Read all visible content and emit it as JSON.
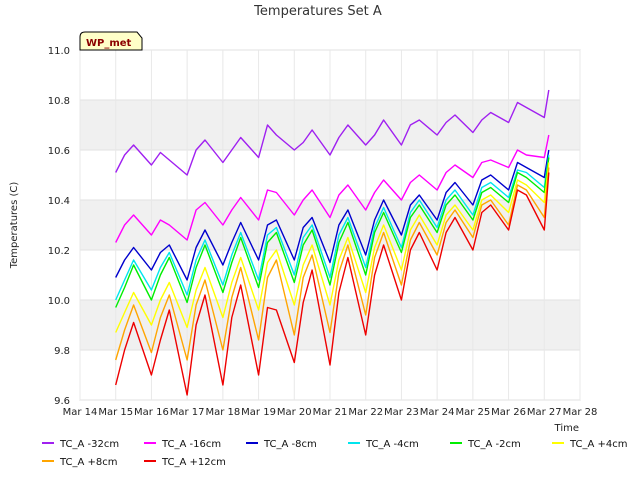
{
  "chart_data": {
    "type": "line",
    "title": "Temperatures Set A",
    "xlabel": "Time",
    "ylabel": "Temperatures (C)",
    "badge": "WP_met",
    "ylim": [
      9.6,
      11.0
    ],
    "xlim": [
      "Mar 14",
      "Mar 28"
    ],
    "grid": true,
    "legend_position": "bottom",
    "x_ticks": [
      "Mar 14",
      "Mar 15",
      "Mar 16",
      "Mar 17",
      "Mar 18",
      "Mar 19",
      "Mar 20",
      "Mar 21",
      "Mar 22",
      "Mar 23",
      "Mar 24",
      "Mar 25",
      "Mar 26",
      "Mar 27",
      "Mar 28"
    ],
    "y_ticks": [
      "9.6",
      "9.8",
      "10.0",
      "10.2",
      "10.4",
      "10.6",
      "10.8",
      "11.0"
    ],
    "series": [
      {
        "name": "TC_A -32cm",
        "color": "#a020f0",
        "x": [
          "Mar 15 00:00",
          "Mar 15 06:00",
          "Mar 15 12:00",
          "Mar 16 00:00",
          "Mar 16 06:00",
          "Mar 16 12:00",
          "Mar 17 00:00",
          "Mar 17 06:00",
          "Mar 17 12:00",
          "Mar 18 00:00",
          "Mar 18 06:00",
          "Mar 18 12:00",
          "Mar 19 00:00",
          "Mar 19 06:00",
          "Mar 19 12:00",
          "Mar 20 00:00",
          "Mar 20 06:00",
          "Mar 20 12:00",
          "Mar 21 00:00",
          "Mar 21 06:00",
          "Mar 21 12:00",
          "Mar 22 00:00",
          "Mar 22 06:00",
          "Mar 22 12:00",
          "Mar 23 00:00",
          "Mar 23 06:00",
          "Mar 23 12:00",
          "Mar 24 00:00",
          "Mar 24 06:00",
          "Mar 24 12:00",
          "Mar 25 00:00",
          "Mar 25 06:00",
          "Mar 25 12:00",
          "Mar 26 00:00",
          "Mar 26 06:00",
          "Mar 26 12:00",
          "Mar 27 00:00",
          "Mar 27 03:00"
        ],
        "y": [
          10.51,
          10.58,
          10.62,
          10.54,
          10.59,
          10.56,
          10.5,
          10.6,
          10.64,
          10.55,
          10.6,
          10.65,
          10.57,
          10.7,
          10.66,
          10.6,
          10.63,
          10.68,
          10.58,
          10.65,
          10.7,
          10.62,
          10.66,
          10.72,
          10.62,
          10.7,
          10.72,
          10.66,
          10.71,
          10.74,
          10.67,
          10.72,
          10.75,
          10.71,
          10.79,
          10.77,
          10.73,
          10.84
        ]
      },
      {
        "name": "TC_A -16cm",
        "color": "#ff00ff",
        "x": [
          "Mar 15 00:00",
          "Mar 15 06:00",
          "Mar 15 12:00",
          "Mar 16 00:00",
          "Mar 16 06:00",
          "Mar 16 12:00",
          "Mar 17 00:00",
          "Mar 17 06:00",
          "Mar 17 12:00",
          "Mar 18 00:00",
          "Mar 18 06:00",
          "Mar 18 12:00",
          "Mar 19 00:00",
          "Mar 19 06:00",
          "Mar 19 12:00",
          "Mar 20 00:00",
          "Mar 20 06:00",
          "Mar 20 12:00",
          "Mar 21 00:00",
          "Mar 21 06:00",
          "Mar 21 12:00",
          "Mar 22 00:00",
          "Mar 22 06:00",
          "Mar 22 12:00",
          "Mar 23 00:00",
          "Mar 23 06:00",
          "Mar 23 12:00",
          "Mar 24 00:00",
          "Mar 24 06:00",
          "Mar 24 12:00",
          "Mar 25 00:00",
          "Mar 25 06:00",
          "Mar 25 12:00",
          "Mar 26 00:00",
          "Mar 26 06:00",
          "Mar 26 12:00",
          "Mar 27 00:00",
          "Mar 27 03:00"
        ],
        "y": [
          10.23,
          10.3,
          10.34,
          10.26,
          10.32,
          10.3,
          10.24,
          10.36,
          10.39,
          10.3,
          10.36,
          10.41,
          10.32,
          10.44,
          10.43,
          10.34,
          10.4,
          10.44,
          10.33,
          10.42,
          10.46,
          10.36,
          10.43,
          10.48,
          10.4,
          10.47,
          10.5,
          10.44,
          10.51,
          10.54,
          10.49,
          10.55,
          10.56,
          10.53,
          10.6,
          10.58,
          10.57,
          10.66
        ]
      },
      {
        "name": "TC_A -8cm",
        "color": "#0000cd",
        "x": [
          "Mar 15 00:00",
          "Mar 15 06:00",
          "Mar 15 12:00",
          "Mar 16 00:00",
          "Mar 16 06:00",
          "Mar 16 12:00",
          "Mar 17 00:00",
          "Mar 17 06:00",
          "Mar 17 12:00",
          "Mar 18 00:00",
          "Mar 18 06:00",
          "Mar 18 12:00",
          "Mar 19 00:00",
          "Mar 19 06:00",
          "Mar 19 12:00",
          "Mar 20 00:00",
          "Mar 20 06:00",
          "Mar 20 12:00",
          "Mar 21 00:00",
          "Mar 21 06:00",
          "Mar 21 12:00",
          "Mar 22 00:00",
          "Mar 22 06:00",
          "Mar 22 12:00",
          "Mar 23 00:00",
          "Mar 23 06:00",
          "Mar 23 12:00",
          "Mar 24 00:00",
          "Mar 24 06:00",
          "Mar 24 12:00",
          "Mar 25 00:00",
          "Mar 25 06:00",
          "Mar 25 12:00",
          "Mar 26 00:00",
          "Mar 26 06:00",
          "Mar 26 12:00",
          "Mar 27 00:00",
          "Mar 27 03:00"
        ],
        "y": [
          10.09,
          10.16,
          10.21,
          10.12,
          10.19,
          10.22,
          10.08,
          10.21,
          10.28,
          10.14,
          10.23,
          10.31,
          10.16,
          10.3,
          10.32,
          10.16,
          10.29,
          10.33,
          10.15,
          10.3,
          10.36,
          10.18,
          10.32,
          10.4,
          10.26,
          10.38,
          10.42,
          10.32,
          10.43,
          10.47,
          10.38,
          10.48,
          10.5,
          10.44,
          10.55,
          10.53,
          10.49,
          10.6
        ]
      },
      {
        "name": "TC_A -4cm",
        "color": "#00e5ee",
        "x": [
          "Mar 15 00:00",
          "Mar 15 06:00",
          "Mar 15 12:00",
          "Mar 16 00:00",
          "Mar 16 06:00",
          "Mar 16 12:00",
          "Mar 17 00:00",
          "Mar 17 06:00",
          "Mar 17 12:00",
          "Mar 18 00:00",
          "Mar 18 06:00",
          "Mar 18 12:00",
          "Mar 19 00:00",
          "Mar 19 06:00",
          "Mar 19 12:00",
          "Mar 20 00:00",
          "Mar 20 06:00",
          "Mar 20 12:00",
          "Mar 21 00:00",
          "Mar 21 06:00",
          "Mar 21 12:00",
          "Mar 22 00:00",
          "Mar 22 06:00",
          "Mar 22 12:00",
          "Mar 23 00:00",
          "Mar 23 06:00",
          "Mar 23 12:00",
          "Mar 24 00:00",
          "Mar 24 06:00",
          "Mar 24 12:00",
          "Mar 25 00:00",
          "Mar 25 06:00",
          "Mar 25 12:00",
          "Mar 26 00:00",
          "Mar 26 06:00",
          "Mar 26 12:00",
          "Mar 27 00:00",
          "Mar 27 03:00"
        ],
        "y": [
          10.0,
          10.08,
          10.16,
          10.04,
          10.13,
          10.19,
          10.02,
          10.16,
          10.24,
          10.06,
          10.18,
          10.27,
          10.08,
          10.26,
          10.29,
          10.1,
          10.25,
          10.3,
          10.09,
          10.26,
          10.33,
          10.13,
          10.29,
          10.37,
          10.21,
          10.35,
          10.4,
          10.29,
          10.4,
          10.44,
          10.34,
          10.45,
          10.47,
          10.41,
          10.52,
          10.51,
          10.45,
          10.58
        ]
      },
      {
        "name": "TC_A -2cm",
        "color": "#00ee00",
        "x": [
          "Mar 15 00:00",
          "Mar 15 06:00",
          "Mar 15 12:00",
          "Mar 16 00:00",
          "Mar 16 06:00",
          "Mar 16 12:00",
          "Mar 17 00:00",
          "Mar 17 06:00",
          "Mar 17 12:00",
          "Mar 18 00:00",
          "Mar 18 06:00",
          "Mar 18 12:00",
          "Mar 19 00:00",
          "Mar 19 06:00",
          "Mar 19 12:00",
          "Mar 20 00:00",
          "Mar 20 06:00",
          "Mar 20 12:00",
          "Mar 21 00:00",
          "Mar 21 06:00",
          "Mar 21 12:00",
          "Mar 22 00:00",
          "Mar 22 06:00",
          "Mar 22 12:00",
          "Mar 23 00:00",
          "Mar 23 06:00",
          "Mar 23 12:00",
          "Mar 24 00:00",
          "Mar 24 06:00",
          "Mar 24 12:00",
          "Mar 25 00:00",
          "Mar 25 06:00",
          "Mar 25 12:00",
          "Mar 26 00:00",
          "Mar 26 06:00",
          "Mar 26 12:00",
          "Mar 27 00:00",
          "Mar 27 03:00"
        ],
        "y": [
          9.97,
          10.05,
          10.14,
          10.0,
          10.1,
          10.17,
          9.99,
          10.13,
          10.22,
          10.03,
          10.15,
          10.25,
          10.05,
          10.23,
          10.27,
          10.07,
          10.22,
          10.28,
          10.06,
          10.23,
          10.31,
          10.1,
          10.27,
          10.35,
          10.19,
          10.33,
          10.38,
          10.27,
          10.38,
          10.42,
          10.32,
          10.43,
          10.45,
          10.39,
          10.51,
          10.49,
          10.43,
          10.57
        ]
      },
      {
        "name": "TC_A +4cm",
        "color": "#ffff00",
        "x": [
          "Mar 15 00:00",
          "Mar 15 06:00",
          "Mar 15 12:00",
          "Mar 16 00:00",
          "Mar 16 06:00",
          "Mar 16 12:00",
          "Mar 17 00:00",
          "Mar 17 06:00",
          "Mar 17 12:00",
          "Mar 18 00:00",
          "Mar 18 06:00",
          "Mar 18 12:00",
          "Mar 19 00:00",
          "Mar 19 06:00",
          "Mar 19 12:00",
          "Mar 20 00:00",
          "Mar 20 06:00",
          "Mar 20 12:00",
          "Mar 21 00:00",
          "Mar 21 06:00",
          "Mar 21 12:00",
          "Mar 22 00:00",
          "Mar 22 06:00",
          "Mar 22 12:00",
          "Mar 23 00:00",
          "Mar 23 06:00",
          "Mar 23 12:00",
          "Mar 24 00:00",
          "Mar 24 06:00",
          "Mar 24 12:00",
          "Mar 25 00:00",
          "Mar 25 06:00",
          "Mar 25 12:00",
          "Mar 26 00:00",
          "Mar 26 06:00",
          "Mar 26 12:00",
          "Mar 27 00:00",
          "Mar 27 03:00"
        ],
        "y": [
          9.87,
          9.95,
          10.03,
          9.9,
          10.0,
          10.07,
          9.89,
          10.04,
          10.13,
          9.93,
          10.07,
          10.17,
          9.96,
          10.15,
          10.2,
          9.98,
          10.14,
          10.22,
          9.98,
          10.16,
          10.25,
          10.03,
          10.21,
          10.3,
          10.12,
          10.28,
          10.34,
          10.22,
          10.34,
          10.38,
          10.28,
          10.4,
          10.42,
          10.35,
          10.48,
          10.46,
          10.39,
          10.55
        ]
      },
      {
        "name": "TC_A +8cm",
        "color": "#ffa500",
        "x": [
          "Mar 15 00:00",
          "Mar 15 06:00",
          "Mar 15 12:00",
          "Mar 16 00:00",
          "Mar 16 06:00",
          "Mar 16 12:00",
          "Mar 17 00:00",
          "Mar 17 06:00",
          "Mar 17 12:00",
          "Mar 18 00:00",
          "Mar 18 06:00",
          "Mar 18 12:00",
          "Mar 19 00:00",
          "Mar 19 06:00",
          "Mar 19 12:00",
          "Mar 20 00:00",
          "Mar 20 06:00",
          "Mar 20 12:00",
          "Mar 21 00:00",
          "Mar 21 06:00",
          "Mar 21 12:00",
          "Mar 22 00:00",
          "Mar 22 06:00",
          "Mar 22 12:00",
          "Mar 23 00:00",
          "Mar 23 06:00",
          "Mar 23 12:00",
          "Mar 24 00:00",
          "Mar 24 06:00",
          "Mar 24 12:00",
          "Mar 25 00:00",
          "Mar 25 06:00",
          "Mar 25 12:00",
          "Mar 26 00:00",
          "Mar 26 06:00",
          "Mar 26 12:00",
          "Mar 27 00:00",
          "Mar 27 03:00"
        ],
        "y": [
          9.76,
          9.88,
          9.98,
          9.79,
          9.93,
          10.02,
          9.76,
          9.98,
          10.08,
          9.8,
          10.01,
          10.13,
          9.84,
          10.09,
          10.16,
          9.86,
          10.09,
          10.18,
          9.87,
          10.11,
          10.22,
          9.94,
          10.17,
          10.27,
          10.06,
          10.24,
          10.31,
          10.18,
          10.31,
          10.36,
          10.25,
          10.38,
          10.4,
          10.3,
          10.46,
          10.44,
          10.33,
          10.53
        ]
      },
      {
        "name": "TC_A +12cm",
        "color": "#ee0000",
        "x": [
          "Mar 15 00:00",
          "Mar 15 06:00",
          "Mar 15 12:00",
          "Mar 16 00:00",
          "Mar 16 06:00",
          "Mar 16 12:00",
          "Mar 17 00:00",
          "Mar 17 06:00",
          "Mar 17 12:00",
          "Mar 18 00:00",
          "Mar 18 06:00",
          "Mar 18 12:00",
          "Mar 19 00:00",
          "Mar 19 06:00",
          "Mar 19 12:00",
          "Mar 20 00:00",
          "Mar 20 06:00",
          "Mar 20 12:00",
          "Mar 21 00:00",
          "Mar 21 06:00",
          "Mar 21 12:00",
          "Mar 22 00:00",
          "Mar 22 06:00",
          "Mar 22 12:00",
          "Mar 23 00:00",
          "Mar 23 06:00",
          "Mar 23 12:00",
          "Mar 24 00:00",
          "Mar 24 06:00",
          "Mar 24 12:00",
          "Mar 25 00:00",
          "Mar 25 06:00",
          "Mar 25 12:00",
          "Mar 26 00:00",
          "Mar 26 06:00",
          "Mar 26 12:00",
          "Mar 27 00:00",
          "Mar 27 03:00"
        ],
        "y": [
          9.66,
          9.8,
          9.91,
          9.7,
          9.84,
          9.96,
          9.62,
          9.9,
          10.02,
          9.66,
          9.93,
          10.06,
          9.7,
          9.97,
          9.96,
          9.75,
          9.99,
          10.12,
          9.74,
          10.03,
          10.17,
          9.86,
          10.1,
          10.22,
          10.0,
          10.2,
          10.27,
          10.12,
          10.27,
          10.33,
          10.2,
          10.35,
          10.38,
          10.28,
          10.44,
          10.42,
          10.28,
          10.51
        ]
      }
    ]
  }
}
